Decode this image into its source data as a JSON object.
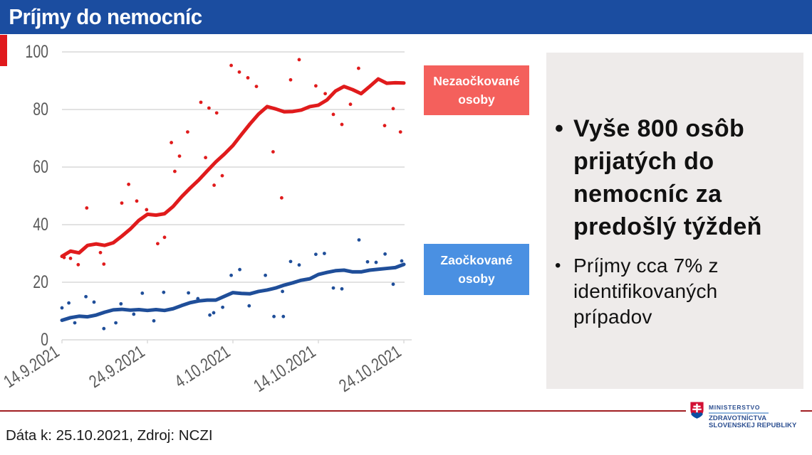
{
  "title_bar": {
    "title": "Príjmy do nemocníc",
    "bg": "#1B4DA0"
  },
  "accent_color": "#E0191C",
  "chart_data": {
    "type": "line+scatter",
    "x_ticks": [
      {
        "day": 0,
        "label": "14.9.2021"
      },
      {
        "day": 10,
        "label": "24.9.2021"
      },
      {
        "day": 20,
        "label": "4.10.2021"
      },
      {
        "day": 30,
        "label": "14.10.2021"
      },
      {
        "day": 40,
        "label": "24.10.2021"
      }
    ],
    "y_ticks": [
      0,
      20,
      40,
      60,
      80,
      100
    ],
    "ylim": [
      0,
      100
    ],
    "grid_color": "#D9D9D9",
    "tick_color": "#595959",
    "series": [
      {
        "name": "Nezaočkované osoby",
        "color": "#E01B1C",
        "trend": [
          29,
          30.8,
          30.2,
          32.8,
          33.3,
          32.8,
          33.7,
          36,
          38.5,
          41.5,
          43.6,
          43.3,
          43.8,
          46.3,
          49.7,
          52.7,
          55.5,
          58.7,
          61.8,
          64.5,
          67.5,
          71.3,
          75,
          78.4,
          81,
          80.2,
          79.2,
          79.3,
          79.8,
          81,
          81.5,
          83.3,
          86.4,
          88,
          86.9,
          85.5,
          88,
          90.6,
          89.1,
          89.3,
          89.2
        ],
        "scatter": [
          [
            0.25,
            28.6
          ],
          [
            1,
            28.3
          ],
          [
            1.9,
            26.1
          ],
          [
            2.9,
            45.8
          ],
          [
            4.5,
            30.3
          ],
          [
            4.9,
            26.3
          ],
          [
            7,
            47.5
          ],
          [
            7.8,
            54
          ],
          [
            8.75,
            48.2
          ],
          [
            9.9,
            45.2
          ],
          [
            11.2,
            33.4
          ],
          [
            12,
            35.6
          ],
          [
            12.8,
            68.5
          ],
          [
            13.2,
            58.5
          ],
          [
            13.75,
            63.8
          ],
          [
            14.7,
            72.2
          ],
          [
            16.25,
            82.5
          ],
          [
            16.8,
            63.3
          ],
          [
            17.2,
            80.5
          ],
          [
            17.8,
            53.7
          ],
          [
            18.1,
            78.8
          ],
          [
            18.75,
            57
          ],
          [
            19.8,
            95.3
          ],
          [
            20.75,
            93
          ],
          [
            21.75,
            91
          ],
          [
            22.75,
            88
          ],
          [
            24.7,
            65.3
          ],
          [
            25.7,
            49.3
          ],
          [
            26.75,
            90.3
          ],
          [
            27.75,
            97.3
          ],
          [
            29.7,
            88.2
          ],
          [
            30.8,
            85.5
          ],
          [
            31.75,
            78.3
          ],
          [
            32.75,
            74.8
          ],
          [
            33.75,
            81.8
          ],
          [
            34.7,
            94.3
          ],
          [
            37.75,
            74.4
          ],
          [
            38.75,
            80.3
          ],
          [
            39.6,
            72.2
          ]
        ]
      },
      {
        "name": "Zaočkované osoby",
        "color": "#1F4E99",
        "trend": [
          6.8,
          7.7,
          8.2,
          8,
          8.6,
          9.6,
          10.4,
          10.6,
          10.3,
          10.5,
          10.2,
          10.5,
          10.2,
          10.8,
          11.9,
          12.9,
          13.5,
          13.8,
          13.8,
          15.1,
          16.4,
          16.1,
          16,
          16.8,
          17.3,
          18,
          19,
          19.8,
          20.7,
          21.2,
          22.7,
          23.4,
          24,
          24.2,
          23.6,
          23.6,
          24.2,
          24.5,
          24.8,
          25.1,
          26.2
        ],
        "scatter": [
          [
            0,
            11.1
          ],
          [
            0.8,
            12.8
          ],
          [
            1.5,
            5.9
          ],
          [
            2.8,
            15
          ],
          [
            3.75,
            13.1
          ],
          [
            4.9,
            3.9
          ],
          [
            6.3,
            5.9
          ],
          [
            6.9,
            12.5
          ],
          [
            8.4,
            8.9
          ],
          [
            9.4,
            16.2
          ],
          [
            10.75,
            6.6
          ],
          [
            11.9,
            16.5
          ],
          [
            14.8,
            16.3
          ],
          [
            15.9,
            14.3
          ],
          [
            17.3,
            8.6
          ],
          [
            17.75,
            9.4
          ],
          [
            18.8,
            11.3
          ],
          [
            19.8,
            22.4
          ],
          [
            20.8,
            24.4
          ],
          [
            21.9,
            11.8
          ],
          [
            23.8,
            22.4
          ],
          [
            24.8,
            8.1
          ],
          [
            25.8,
            16.8
          ],
          [
            25.9,
            8.1
          ],
          [
            26.75,
            27.2
          ],
          [
            27.75,
            26
          ],
          [
            29.7,
            29.7
          ],
          [
            30.7,
            30
          ],
          [
            31.75,
            18
          ],
          [
            32.75,
            17.7
          ],
          [
            34.75,
            34.7
          ],
          [
            35.75,
            27.1
          ],
          [
            36.75,
            26.9
          ],
          [
            37.8,
            29.8
          ],
          [
            38.75,
            19.3
          ],
          [
            39.75,
            27.4
          ]
        ]
      }
    ]
  },
  "legend": {
    "unvaccinated": {
      "label": "Nezaočkované osoby",
      "bg": "#F4605C"
    },
    "vaccinated": {
      "label": "Zaočkované osoby",
      "bg": "#4A90E2"
    }
  },
  "panel": {
    "bg": "#EEEBEA",
    "bullet1": "Vyše 800 osôb prijatých do nemocníc za predošlý týždeň",
    "bullet2": "Príjmy cca 7% z identifikovaných prípadov"
  },
  "footer": {
    "source_note": "Dáta k: 25.10.2021, Zdroj: NCZI",
    "divider_color": "#A11E22"
  },
  "logo": {
    "line1": "MINISTERSTVO",
    "line2": "ZDRAVOTNÍCTVA",
    "line3": "SLOVENSKEJ REPUBLIKY"
  }
}
